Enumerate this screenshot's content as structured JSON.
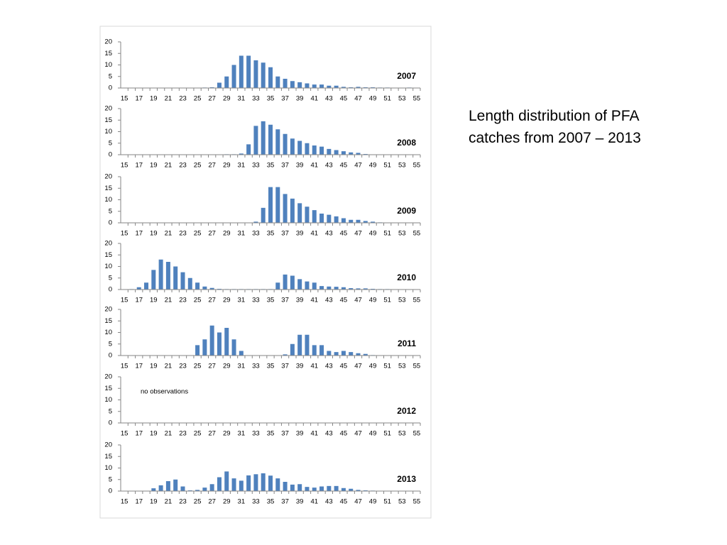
{
  "title": "Length distribution of PFA catches from 2007 – 2013",
  "chart_data": [
    {
      "type": "bar",
      "label": "2007",
      "color": "#4f81bd",
      "ylim": [
        0,
        20
      ],
      "yticks": [
        0,
        5,
        10,
        15,
        20
      ],
      "categories": [
        15,
        null,
        17,
        null,
        19,
        null,
        21,
        null,
        23,
        null,
        25,
        null,
        27,
        null,
        29,
        null,
        31,
        null,
        33,
        null,
        35,
        null,
        37,
        null,
        39,
        null,
        41,
        null,
        43,
        null,
        45,
        null,
        47,
        null,
        49,
        null,
        51,
        null,
        53,
        null,
        55
      ],
      "values": [
        0,
        0,
        0,
        0,
        0,
        0,
        0,
        0,
        0,
        0,
        0,
        0.2,
        0.3,
        2.3,
        5,
        10,
        14,
        14,
        12,
        11,
        9,
        5,
        4,
        3,
        2.5,
        2,
        1.5,
        1.5,
        1,
        1,
        0.5,
        0.3,
        0.5,
        0.3,
        0.3,
        0.2,
        0.2,
        0.1,
        0.1,
        0.2,
        0
      ]
    },
    {
      "type": "bar",
      "label": "2008",
      "color": "#4f81bd",
      "ylim": [
        0,
        20
      ],
      "yticks": [
        0,
        5,
        10,
        15,
        20
      ],
      "categories": [
        15,
        null,
        17,
        null,
        19,
        null,
        21,
        null,
        23,
        null,
        25,
        null,
        27,
        null,
        29,
        null,
        31,
        null,
        33,
        null,
        35,
        null,
        37,
        null,
        39,
        null,
        41,
        null,
        43,
        null,
        45,
        null,
        47,
        null,
        49,
        null,
        51,
        null,
        53,
        null,
        55
      ],
      "values": [
        0,
        0,
        0,
        0,
        0,
        0,
        0,
        0,
        0,
        0,
        0,
        0,
        0,
        0,
        0.2,
        0.2,
        0.5,
        4.5,
        12.5,
        14.5,
        13,
        11,
        9,
        7,
        6,
        5,
        4,
        3.5,
        2.5,
        2,
        1.5,
        1,
        0.8,
        0.3,
        0.1,
        0,
        0,
        0,
        0,
        0,
        0
      ]
    },
    {
      "type": "bar",
      "label": "2009",
      "color": "#4f81bd",
      "ylim": [
        0,
        20
      ],
      "yticks": [
        0,
        5,
        10,
        15,
        20
      ],
      "categories": [
        15,
        null,
        17,
        null,
        19,
        null,
        21,
        null,
        23,
        null,
        25,
        null,
        27,
        null,
        29,
        null,
        31,
        null,
        33,
        null,
        35,
        null,
        37,
        null,
        39,
        null,
        41,
        null,
        43,
        null,
        45,
        null,
        47,
        null,
        49,
        null,
        51,
        null,
        53,
        null,
        55
      ],
      "values": [
        0,
        0,
        0,
        0,
        0,
        0,
        0,
        0,
        0,
        0,
        0,
        0,
        0,
        0,
        0,
        0,
        0,
        0,
        0.5,
        6.5,
        15.5,
        15.5,
        12.5,
        10.5,
        8.5,
        7,
        5.5,
        4,
        3.5,
        2.8,
        2,
        1.3,
        1.3,
        0.8,
        0.5,
        0.2,
        0.1,
        0,
        0,
        0,
        0
      ]
    },
    {
      "type": "bar",
      "label": "2010",
      "color": "#4f81bd",
      "ylim": [
        0,
        20
      ],
      "yticks": [
        0,
        5,
        10,
        15,
        20
      ],
      "categories": [
        15,
        null,
        17,
        null,
        19,
        null,
        21,
        null,
        23,
        null,
        25,
        null,
        27,
        null,
        29,
        null,
        31,
        null,
        33,
        null,
        35,
        null,
        37,
        null,
        39,
        null,
        41,
        null,
        43,
        null,
        45,
        null,
        47,
        null,
        49,
        null,
        51,
        null,
        53,
        null,
        55
      ],
      "values": [
        0,
        0.2,
        1,
        3,
        8.5,
        13,
        12,
        10,
        7.5,
        5,
        3,
        1.3,
        0.7,
        0.3,
        0.2,
        0.2,
        0.2,
        0.2,
        0.2,
        0.2,
        0.2,
        3,
        6.5,
        6,
        4.5,
        3.5,
        3,
        1.5,
        1.3,
        1.2,
        1,
        0.6,
        0.5,
        0.5,
        0.3,
        0.2,
        0.2,
        0.1,
        0.1,
        0.1,
        0
      ]
    },
    {
      "type": "bar",
      "label": "2011",
      "color": "#4f81bd",
      "ylim": [
        0,
        20
      ],
      "yticks": [
        0,
        5,
        10,
        15,
        20
      ],
      "categories": [
        15,
        null,
        17,
        null,
        19,
        null,
        21,
        null,
        23,
        null,
        25,
        null,
        27,
        null,
        29,
        null,
        31,
        null,
        33,
        null,
        35,
        null,
        37,
        null,
        39,
        null,
        41,
        null,
        43,
        null,
        45,
        null,
        47,
        null,
        49,
        null,
        51,
        null,
        53,
        null,
        55
      ],
      "values": [
        0,
        0,
        0,
        0,
        0,
        0,
        0,
        0,
        0,
        0,
        4.5,
        7,
        13,
        10,
        12,
        7,
        2,
        0,
        0,
        0,
        0,
        0,
        0.5,
        5,
        9,
        9,
        4.5,
        4.5,
        2,
        1.5,
        2,
        1.5,
        1,
        0.7,
        0.2,
        0,
        0,
        0,
        0,
        0,
        0
      ]
    },
    {
      "type": "bar",
      "label": "2012",
      "annotation": "no observations",
      "color": "#4f81bd",
      "ylim": [
        0,
        20
      ],
      "yticks": [
        0,
        5,
        10,
        15,
        20
      ],
      "categories": [
        15,
        null,
        17,
        null,
        19,
        null,
        21,
        null,
        23,
        null,
        25,
        null,
        27,
        null,
        29,
        null,
        31,
        null,
        33,
        null,
        35,
        null,
        37,
        null,
        39,
        null,
        41,
        null,
        43,
        null,
        45,
        null,
        47,
        null,
        49,
        null,
        51,
        null,
        53,
        null,
        55
      ],
      "values": [
        null,
        null,
        null,
        null,
        null,
        null,
        null,
        null,
        null,
        null,
        null,
        null,
        null,
        null,
        null,
        null,
        null,
        null,
        null,
        null,
        null,
        null,
        null,
        null,
        null,
        null,
        null,
        null,
        null,
        null,
        null,
        null,
        null,
        null,
        null,
        null,
        null,
        null,
        null,
        null,
        null
      ]
    },
    {
      "type": "bar",
      "label": "2013",
      "color": "#4f81bd",
      "ylim": [
        0,
        20
      ],
      "yticks": [
        0,
        5,
        10,
        15,
        20
      ],
      "categories": [
        15,
        null,
        17,
        null,
        19,
        null,
        21,
        null,
        23,
        null,
        25,
        null,
        27,
        null,
        29,
        null,
        31,
        null,
        33,
        null,
        35,
        null,
        37,
        null,
        39,
        null,
        41,
        null,
        43,
        null,
        45,
        null,
        47,
        null,
        49,
        null,
        51,
        null,
        53,
        null,
        55
      ],
      "values": [
        0,
        0,
        0,
        0,
        1.2,
        2.5,
        4.3,
        5,
        2,
        0.3,
        0.5,
        1.5,
        3,
        6,
        8.5,
        5.5,
        4.5,
        6.8,
        7.3,
        7.7,
        6.7,
        5.5,
        4,
        2.8,
        3,
        1.8,
        1.5,
        2,
        2.2,
        2.2,
        1.3,
        1,
        0.5,
        0.3,
        0.2,
        0,
        0,
        0,
        0,
        0,
        0
      ]
    }
  ]
}
